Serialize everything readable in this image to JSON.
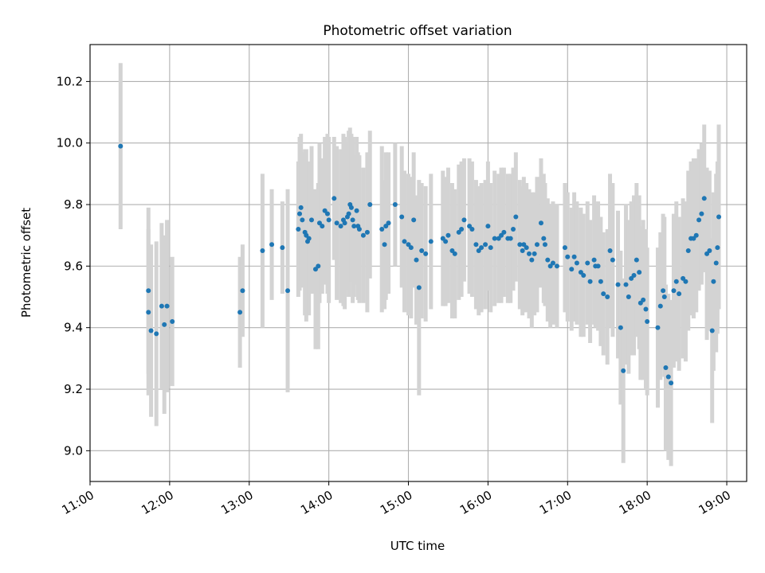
{
  "chart_data": {
    "type": "scatter",
    "title": "Photometric offset variation",
    "xlabel": "UTC time",
    "ylabel": "Photometric offset",
    "x_axis_type": "time",
    "xlim": [
      "11:00",
      "19:15"
    ],
    "ylim": [
      8.9,
      10.32
    ],
    "x_ticks": [
      "11:00",
      "12:00",
      "13:00",
      "14:00",
      "15:00",
      "16:00",
      "17:00",
      "18:00",
      "19:00"
    ],
    "y_ticks": [
      "9.0",
      "9.2",
      "9.4",
      "9.6",
      "9.8",
      "10.0",
      "10.2"
    ],
    "grid": true,
    "legend": "none",
    "colors": {
      "point": "#1f77b4",
      "errorbar": "#d3d3d3",
      "grid": "#b0b0b0"
    },
    "series": [
      {
        "x": [
          "11:23",
          "11:44",
          "11:44",
          "11:46",
          "11:50",
          "11:54",
          "11:56",
          "11:58",
          "12:02",
          "12:53",
          "12:55",
          "13:10",
          "13:17",
          "13:25",
          "13:29",
          "13:37",
          "13:38",
          "13:39",
          "13:40",
          "13:42",
          "13:43",
          "13:44",
          "13:45",
          "13:47",
          "13:50",
          "13:52",
          "13:53",
          "13:55",
          "13:57",
          "13:59",
          "14:00",
          "14:04",
          "14:06",
          "14:09",
          "14:11",
          "14:12",
          "14:14",
          "14:15",
          "14:16",
          "14:17",
          "14:18",
          "14:19",
          "14:21",
          "14:22",
          "14:23",
          "14:26",
          "14:29",
          "14:31",
          "14:40",
          "14:42",
          "14:43",
          "14:45",
          "14:50",
          "14:55",
          "14:57",
          "15:00",
          "15:02",
          "15:04",
          "15:06",
          "15:08",
          "15:10",
          "15:13",
          "15:17",
          "15:26",
          "15:28",
          "15:30",
          "15:33",
          "15:35",
          "15:38",
          "15:40",
          "15:42",
          "15:46",
          "15:48",
          "15:51",
          "15:53",
          "15:55",
          "15:58",
          "16:00",
          "16:02",
          "16:05",
          "16:08",
          "16:10",
          "16:12",
          "16:15",
          "16:17",
          "16:19",
          "16:21",
          "16:24",
          "16:26",
          "16:27",
          "16:29",
          "16:31",
          "16:33",
          "16:35",
          "16:37",
          "16:40",
          "16:42",
          "16:43",
          "16:45",
          "16:47",
          "16:49",
          "16:52",
          "16:58",
          "17:00",
          "17:03",
          "17:05",
          "17:07",
          "17:10",
          "17:12",
          "17:15",
          "17:17",
          "17:20",
          "17:21",
          "17:23",
          "17:25",
          "17:27",
          "17:30",
          "17:32",
          "17:34",
          "17:38",
          "17:40",
          "17:42",
          "17:44",
          "17:46",
          "17:48",
          "17:50",
          "17:52",
          "17:54",
          "17:55",
          "17:57",
          "17:59",
          "18:00",
          "18:08",
          "18:10",
          "18:12",
          "18:13",
          "18:14",
          "18:16",
          "18:18",
          "18:20",
          "18:22",
          "18:24",
          "18:27",
          "18:29",
          "18:31",
          "18:33",
          "18:35",
          "18:37",
          "18:39",
          "18:41",
          "18:43",
          "18:45",
          "18:47",
          "18:49",
          "18:50",
          "18:52",
          "18:53",
          "18:54"
        ],
        "y": [
          9.99,
          9.52,
          9.45,
          9.39,
          9.38,
          9.47,
          9.41,
          9.47,
          9.42,
          9.45,
          9.52,
          9.65,
          9.67,
          9.66,
          9.52,
          9.72,
          9.77,
          9.79,
          9.75,
          9.71,
          9.7,
          9.68,
          9.69,
          9.75,
          9.59,
          9.6,
          9.74,
          9.73,
          9.78,
          9.77,
          9.75,
          9.82,
          9.74,
          9.73,
          9.75,
          9.74,
          9.76,
          9.77,
          9.8,
          9.79,
          9.75,
          9.73,
          9.78,
          9.73,
          9.72,
          9.7,
          9.71,
          9.8,
          9.72,
          9.67,
          9.73,
          9.74,
          9.8,
          9.76,
          9.68,
          9.67,
          9.66,
          9.75,
          9.62,
          9.53,
          9.65,
          9.64,
          9.68,
          9.69,
          9.68,
          9.7,
          9.65,
          9.64,
          9.71,
          9.72,
          9.75,
          9.73,
          9.72,
          9.67,
          9.65,
          9.66,
          9.67,
          9.73,
          9.66,
          9.69,
          9.69,
          9.7,
          9.71,
          9.69,
          9.69,
          9.72,
          9.76,
          9.67,
          9.65,
          9.67,
          9.66,
          9.64,
          9.62,
          9.64,
          9.67,
          9.74,
          9.69,
          9.67,
          9.62,
          9.6,
          9.61,
          9.6,
          9.66,
          9.63,
          9.59,
          9.63,
          9.61,
          9.58,
          9.57,
          9.61,
          9.55,
          9.62,
          9.6,
          9.6,
          9.55,
          9.51,
          9.5,
          9.65,
          9.62,
          9.54,
          9.4,
          9.26,
          9.54,
          9.5,
          9.56,
          9.57,
          9.62,
          9.58,
          9.48,
          9.49,
          9.46,
          9.42,
          9.4,
          9.47,
          9.52,
          9.5,
          9.27,
          9.24,
          9.22,
          9.52,
          9.55,
          9.51,
          9.56,
          9.55,
          9.65,
          9.69,
          9.69,
          9.7,
          9.75,
          9.77,
          9.82,
          9.64,
          9.65,
          9.39,
          9.55,
          9.61,
          9.66,
          9.76
        ],
        "error": [
          0.27,
          0.27,
          0.27,
          0.28,
          0.3,
          0.27,
          0.29,
          0.28,
          0.21,
          0.18,
          0.15,
          0.25,
          0.18,
          0.15,
          0.33,
          0.22,
          0.25,
          0.24,
          0.22,
          0.27,
          0.28,
          0.23,
          0.25,
          0.24,
          0.26,
          0.27,
          0.26,
          0.22,
          0.24,
          0.26,
          0.27,
          0.2,
          0.25,
          0.25,
          0.28,
          0.28,
          0.24,
          0.27,
          0.25,
          0.24,
          0.27,
          0.23,
          0.24,
          0.24,
          0.24,
          0.22,
          0.26,
          0.24,
          0.27,
          0.21,
          0.24,
          0.23,
          0.2,
          0.23,
          0.23,
          0.23,
          0.23,
          0.22,
          0.21,
          0.35,
          0.22,
          0.22,
          0.22,
          0.22,
          0.21,
          0.22,
          0.22,
          0.21,
          0.22,
          0.22,
          0.2,
          0.22,
          0.22,
          0.21,
          0.21,
          0.21,
          0.21,
          0.21,
          0.21,
          0.22,
          0.21,
          0.22,
          0.21,
          0.21,
          0.21,
          0.2,
          0.21,
          0.21,
          0.21,
          0.22,
          0.21,
          0.21,
          0.22,
          0.2,
          0.22,
          0.21,
          0.21,
          0.2,
          0.2,
          0.2,
          0.2,
          0.2,
          0.21,
          0.21,
          0.2,
          0.21,
          0.2,
          0.21,
          0.2,
          0.2,
          0.2,
          0.21,
          0.2,
          0.21,
          0.21,
          0.2,
          0.22,
          0.25,
          0.25,
          0.24,
          0.25,
          0.3,
          0.26,
          0.25,
          0.25,
          0.26,
          0.25,
          0.25,
          0.25,
          0.26,
          0.26,
          0.24,
          0.26,
          0.24,
          0.25,
          0.26,
          0.27,
          0.27,
          0.27,
          0.25,
          0.26,
          0.25,
          0.26,
          0.26,
          0.26,
          0.25,
          0.26,
          0.25,
          0.23,
          0.23,
          0.24,
          0.28,
          0.26,
          0.3,
          0.29,
          0.29,
          0.28,
          0.3
        ]
      }
    ]
  }
}
